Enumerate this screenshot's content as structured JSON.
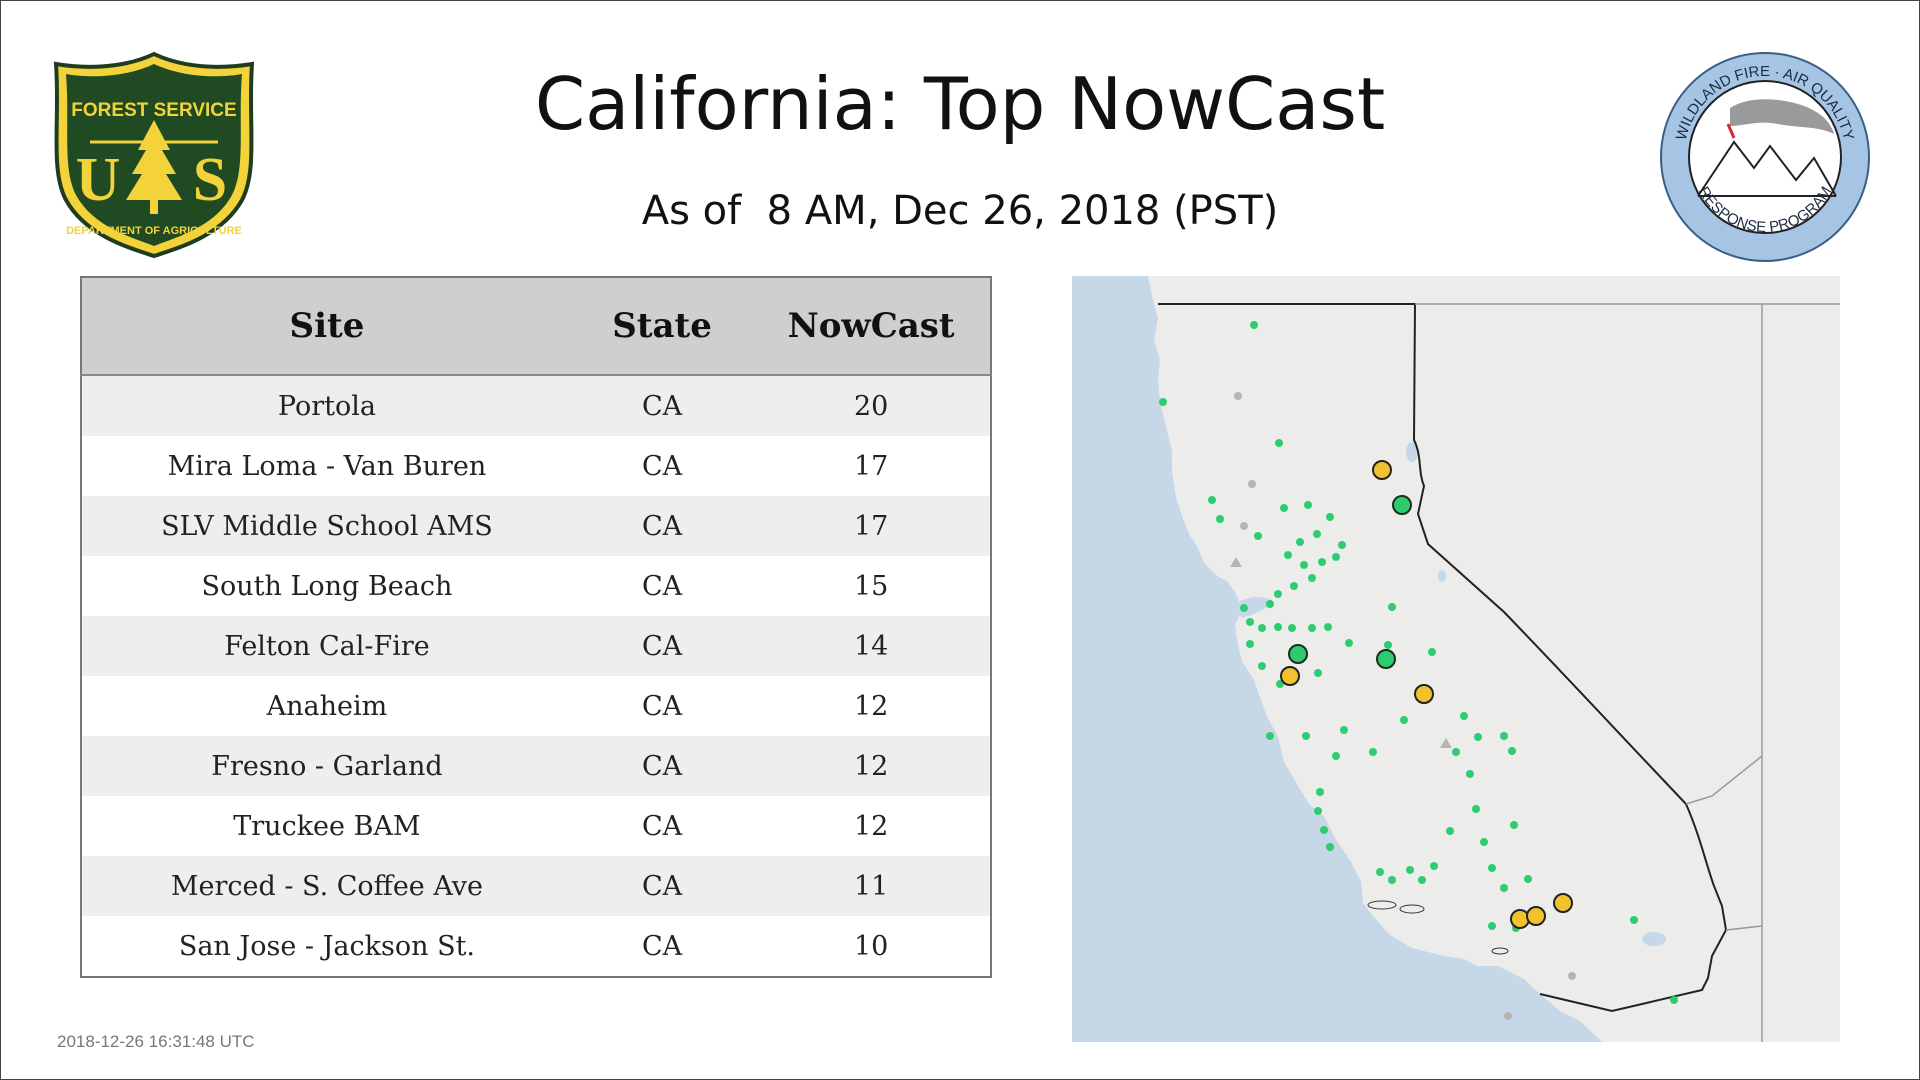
{
  "title": "California: Top NowCast",
  "subtitle": "As of  8 AM, Dec 26, 2018 (PST)",
  "logos": {
    "left": {
      "name": "forest-service-shield",
      "top_text": "FOREST SERVICE",
      "bottom_text": "DEPARTMENT OF AGRICULTURE",
      "letters": "U S"
    },
    "right": {
      "name": "wildland-fire-aq-badge",
      "top_text": "WILDLAND FIRE · AIR QUALITY",
      "bottom_text": "RESPONSE PROGRAM"
    }
  },
  "table": {
    "headers": {
      "site": "Site",
      "state": "State",
      "nowcast": "NowCast"
    },
    "rows": [
      {
        "site": "Portola",
        "state": "CA",
        "nowcast": "20"
      },
      {
        "site": "Mira Loma - Van Buren",
        "state": "CA",
        "nowcast": "17"
      },
      {
        "site": "SLV Middle School AMS",
        "state": "CA",
        "nowcast": "17"
      },
      {
        "site": "South Long Beach",
        "state": "CA",
        "nowcast": "15"
      },
      {
        "site": "Felton Cal-Fire",
        "state": "CA",
        "nowcast": "14"
      },
      {
        "site": "Anaheim",
        "state": "CA",
        "nowcast": "12"
      },
      {
        "site": "Fresno - Garland",
        "state": "CA",
        "nowcast": "12"
      },
      {
        "site": "Truckee BAM",
        "state": "CA",
        "nowcast": "12"
      },
      {
        "site": "Merced - S. Coffee Ave",
        "state": "CA",
        "nowcast": "11"
      },
      {
        "site": "San Jose - Jackson St.",
        "state": "CA",
        "nowcast": "10"
      }
    ]
  },
  "map": {
    "colors": {
      "ocean": "#c6d7e8",
      "land": "#ececea",
      "border": "#222222",
      "good": "#2ecc71",
      "good_ring": "#27ae60",
      "moderate": "#f2c12e",
      "inactive": "#b5b5b5"
    },
    "markers": {
      "moderate": [
        [
          -120.47,
          39.8
        ],
        [
          -121.87,
          37.0
        ],
        [
          -120.48,
          37.3
        ],
        [
          -117.5,
          34.0
        ],
        [
          -118.22,
          33.85
        ],
        [
          -117.9,
          33.83
        ]
      ],
      "good_large": [
        [
          -120.2,
          39.33
        ],
        [
          -121.9,
          37.33
        ],
        [
          -120.75,
          37.05
        ]
      ]
    }
  },
  "timestamp": "2018-12-26 16:31:48 UTC"
}
